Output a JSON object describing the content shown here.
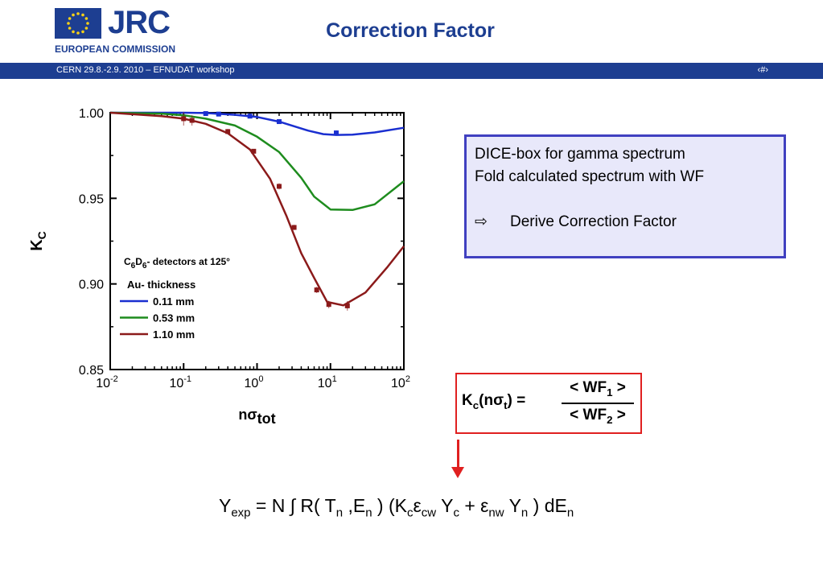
{
  "header": {
    "org_short": "JRC",
    "org_full": "EUROPEAN COMMISSION",
    "title": "Correction Factor",
    "bar_left": "CERN 29.8.-2.9. 2010 – EFNUDAT workshop",
    "bar_right": "‹#›"
  },
  "dice_box": {
    "line1": "DICE-box for gamma spectrum",
    "line2": "Fold calculated spectrum with WF",
    "arrow": "⇨",
    "line3": "Derive Correction Factor"
  },
  "formula_box": {
    "lhs_k": "K",
    "lhs_k_sub": "c",
    "lhs_mid": "(nσ",
    "lhs_t_sub": "t",
    "lhs_end": ") =",
    "num_open": "< WF",
    "num_sub": "1",
    "num_close": " >",
    "den_open": "< WF",
    "den_sub": "2",
    "den_close": " >"
  },
  "equation": {
    "y": "Y",
    "y_sub": "exp",
    "mid1": " = N ∫ R( T",
    "n_sub1": "n",
    "mid2": " ,E",
    "n_sub2": "n",
    "mid3": " ) (K",
    "c_sub1": "c",
    "eps1": "ε",
    "cw_sub": "cw",
    "y2": " Y",
    "c_sub2": "c",
    "plus": " +  ε",
    "nw_sub": "nw",
    "y3": "  Y",
    "n_sub3": "n",
    "de": " ) dE",
    "n_sub4": "n"
  },
  "chart_data": {
    "type": "line",
    "xscale": "log",
    "xlim": [
      0.01,
      100
    ],
    "ylim": [
      0.85,
      1.0
    ],
    "xlabel_main": "nσ",
    "xlabel_sub": "tot",
    "ylabel_main": "K",
    "ylabel_sub": "C",
    "x_ticks": [
      {
        "value": 0.01,
        "base": "10",
        "exp": "-2"
      },
      {
        "value": 0.1,
        "base": "10",
        "exp": "-1"
      },
      {
        "value": 1,
        "base": "10",
        "exp": "0"
      },
      {
        "value": 10,
        "base": "10",
        "exp": "1"
      },
      {
        "value": 100,
        "base": "10",
        "exp": "2"
      }
    ],
    "y_ticks": [
      {
        "value": 1.0,
        "label": "1.00"
      },
      {
        "value": 0.95,
        "label": "0.95"
      },
      {
        "value": 0.9,
        "label": "0.90"
      },
      {
        "value": 0.85,
        "label": "0.85"
      }
    ],
    "annotation": {
      "main": "C",
      "sub1": "6",
      "mid": "D",
      "sub2": "6",
      "rest": "- detectors at 125°"
    },
    "legend_title": "Au- thickness",
    "legend_position": "left",
    "series": [
      {
        "name": "0.11 mm",
        "color": "#1a2fd0",
        "x": [
          0.01,
          0.05,
          0.1,
          0.2,
          0.5,
          1,
          2,
          5,
          8,
          12,
          20,
          40,
          100
        ],
        "y": [
          1.0,
          1.0,
          1.0,
          0.9998,
          0.9988,
          0.9975,
          0.9948,
          0.9895,
          0.9875,
          0.987,
          0.9872,
          0.9885,
          0.9912
        ],
        "points": [
          {
            "x": 0.2,
            "y": 0.9995,
            "err": 0.0012
          },
          {
            "x": 0.3,
            "y": 0.9992,
            "err": 0.001
          },
          {
            "x": 0.8,
            "y": 0.998,
            "err": 0.0008
          },
          {
            "x": 2,
            "y": 0.9948,
            "err": 0.0008
          },
          {
            "x": 12,
            "y": 0.9882,
            "err": 0.0015
          }
        ]
      },
      {
        "name": "0.53 mm",
        "color": "#1e8c1e",
        "x": [
          0.01,
          0.05,
          0.1,
          0.2,
          0.5,
          1,
          2,
          4,
          6,
          10,
          20,
          40,
          100
        ],
        "y": [
          1.0,
          0.9995,
          0.9985,
          0.9965,
          0.9925,
          0.986,
          0.977,
          0.962,
          0.951,
          0.9435,
          0.9432,
          0.9465,
          0.96
        ],
        "points": []
      },
      {
        "name": "1.10 mm",
        "color": "#8b1a1a",
        "x": [
          0.01,
          0.05,
          0.1,
          0.2,
          0.4,
          0.8,
          1.5,
          2.5,
          4,
          6,
          9,
          15,
          30,
          60,
          100
        ],
        "y": [
          1.0,
          0.998,
          0.9965,
          0.9935,
          0.988,
          0.9785,
          0.9615,
          0.94,
          0.918,
          0.9035,
          0.8895,
          0.8875,
          0.895,
          0.91,
          0.922
        ],
        "points": [
          {
            "x": 0.1,
            "y": 0.9965,
            "err": 0.004
          },
          {
            "x": 0.13,
            "y": 0.9955,
            "err": 0.003
          },
          {
            "x": 0.4,
            "y": 0.989,
            "err": 0.0015
          },
          {
            "x": 0.9,
            "y": 0.9775,
            "err": 0.0012
          },
          {
            "x": 2,
            "y": 0.957,
            "err": 0.0018
          },
          {
            "x": 3.2,
            "y": 0.933,
            "err": 0.0015
          },
          {
            "x": 6.5,
            "y": 0.8965,
            "err": 0.0018
          },
          {
            "x": 9.5,
            "y": 0.888,
            "err": 0.0022
          },
          {
            "x": 17,
            "y": 0.8872,
            "err": 0.0028
          }
        ]
      }
    ]
  }
}
